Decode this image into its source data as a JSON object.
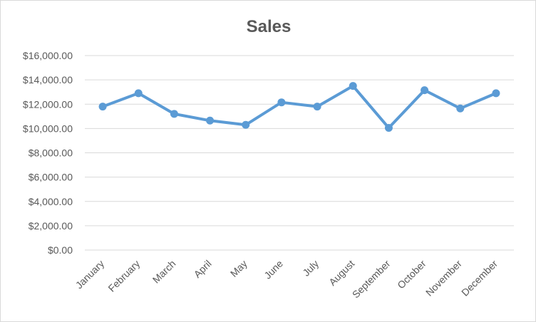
{
  "chart_data": {
    "type": "line",
    "title": "Sales",
    "xlabel": "",
    "ylabel": "",
    "categories": [
      "January",
      "February",
      "March",
      "April",
      "May",
      "June",
      "July",
      "August",
      "September",
      "October",
      "November",
      "December"
    ],
    "series": [
      {
        "values": [
          11800,
          12900,
          11200,
          10650,
          10300,
          12150,
          11800,
          13500,
          10050,
          13150,
          11650,
          12900
        ]
      }
    ],
    "ylim": [
      0,
      16000
    ],
    "yticks": [
      0,
      2000,
      4000,
      6000,
      8000,
      10000,
      12000,
      14000,
      16000
    ],
    "ytick_labels": [
      "$0.00",
      "$2,000.00",
      "$4,000.00",
      "$6,000.00",
      "$8,000.00",
      "$10,000.00",
      "$12,000.00",
      "$14,000.00",
      "$16,000.00"
    ],
    "grid": true,
    "legend": "none",
    "colors": {
      "series": "#5b9bd5",
      "grid": "#d9d9d9",
      "text": "#595959"
    }
  }
}
